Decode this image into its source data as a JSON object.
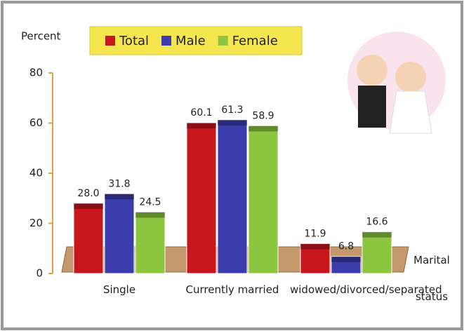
{
  "chart_data": {
    "type": "bar",
    "ylabel": "Percent",
    "xlabel": "Marital status",
    "categories": [
      "Single",
      "Currently married",
      "widowed/divorced/separated"
    ],
    "series": [
      {
        "name": "Total",
        "color": "#c8161d",
        "values": [
          28.0,
          60.1,
          11.9
        ],
        "value_labels": [
          "28.0",
          "60.1",
          "11.9"
        ]
      },
      {
        "name": "Male",
        "color": "#3c3cad",
        "values": [
          31.8,
          61.3,
          6.8
        ],
        "value_labels": [
          "31.8",
          "61.3",
          "6.8"
        ]
      },
      {
        "name": "Female",
        "color": "#8cc63e",
        "values": [
          24.5,
          58.9,
          16.6
        ],
        "value_labels": [
          "24.5",
          "58.9",
          "16.6"
        ]
      }
    ],
    "ylim": [
      0,
      80
    ],
    "yticks": [
      0,
      20,
      40,
      60,
      80
    ]
  }
}
